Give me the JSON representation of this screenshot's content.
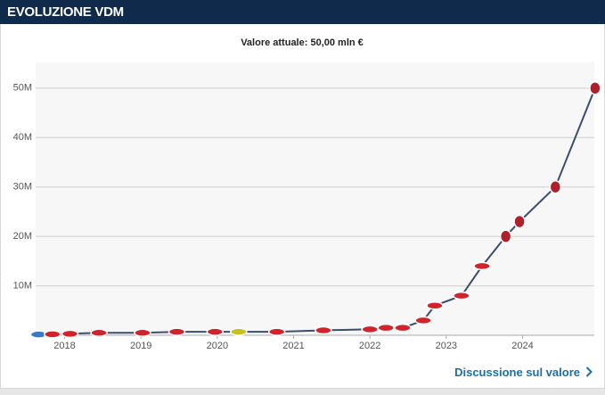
{
  "header": {
    "title": "EVOLUZIONE VDM"
  },
  "chart_data": {
    "type": "line",
    "subtitle": "Valore attuale: 50,00 mln €",
    "x": [
      2017.66,
      2017.84,
      2018.07,
      2018.45,
      2019.02,
      2019.47,
      2019.97,
      2020.28,
      2020.78,
      2021.39,
      2022.0,
      2022.21,
      2022.43,
      2022.7,
      2022.85,
      2023.2,
      2023.47,
      2023.78,
      2023.96,
      2024.43,
      2024.95
    ],
    "values": [
      0.15,
      0.2,
      0.3,
      0.5,
      0.5,
      0.7,
      0.7,
      0.7,
      0.7,
      1,
      1.2,
      1.5,
      1.5,
      3,
      6,
      8,
      14,
      20,
      23,
      30,
      50
    ],
    "marker_colors": [
      "#3a7bc8",
      "#d2232a",
      "#d2232a",
      "#d2232a",
      "#d2232a",
      "#d2232a",
      "#d2232a",
      "#c8c020",
      "#d2232a",
      "#d2232a",
      "#d2232a",
      "#d2232a",
      "#d2232a",
      "#d2232a",
      "#d2232a",
      "#d2232a",
      "#d2232a",
      "#b0202a",
      "#b0202a",
      "#b0202a",
      "#b0202a"
    ],
    "color": "#3a4e6e",
    "xlim": [
      2017.62,
      2024.94
    ],
    "xticks": [
      2018,
      2019,
      2020,
      2021,
      2022,
      2023,
      2024
    ],
    "ylim": [
      0,
      55.2
    ],
    "yticks": [
      {
        "value": 10,
        "label": "10M"
      },
      {
        "value": 20,
        "label": "20M"
      },
      {
        "value": 30,
        "label": "30M"
      },
      {
        "value": 40,
        "label": "40M"
      },
      {
        "value": 50,
        "label": "50M"
      }
    ],
    "grid": true
  },
  "link": {
    "label": "Discussione sul valore"
  }
}
